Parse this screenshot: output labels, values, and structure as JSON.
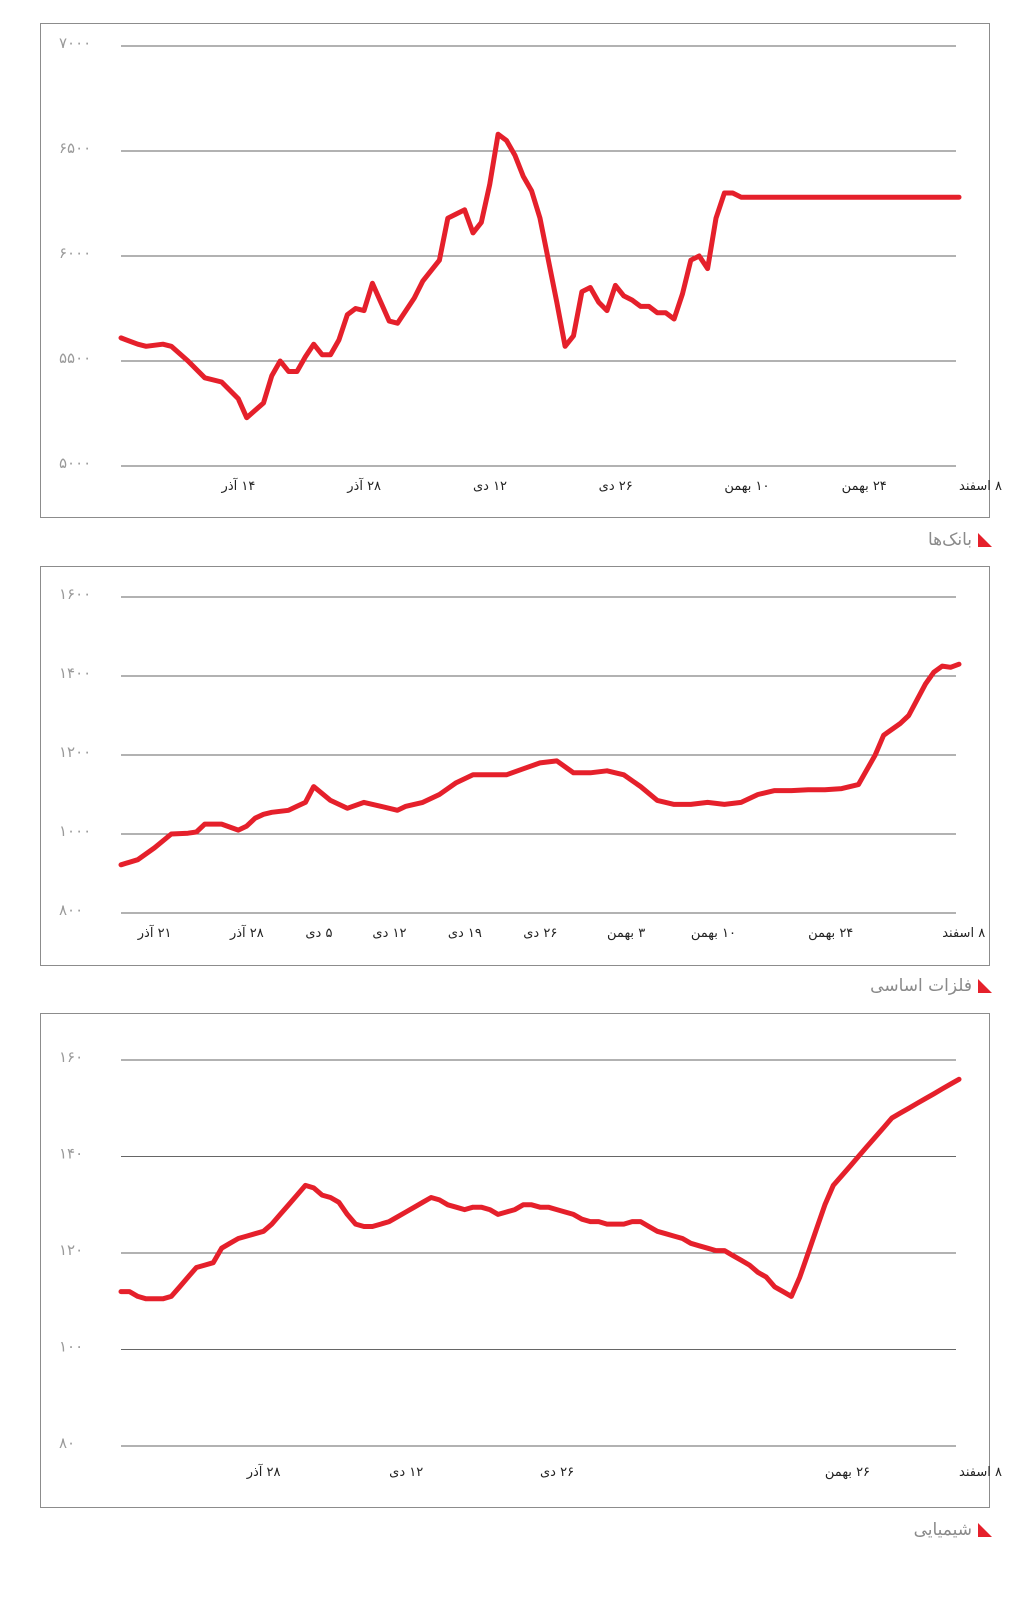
{
  "chart_data": [
    {
      "type": "line",
      "title": "بانک‌ها",
      "color": "#e5202b",
      "y_ticks": [
        "۵۰۰۰",
        "۵۵۰۰",
        "۶۰۰۰",
        "۶۵۰۰",
        "۷۰۰۰"
      ],
      "y_tick_values": [
        5000,
        5500,
        6000,
        6500,
        7000
      ],
      "ylim": [
        5000,
        7000
      ],
      "x_ticks": [
        "۱۴ آذر",
        "۲۸ آذر",
        "۱۲ دی",
        "۲۶ دی",
        "۱۰ بهمن",
        "۲۴ بهمن",
        "۸ اسفند"
      ],
      "x_tick_positions": [
        12,
        27,
        42,
        57,
        72,
        86,
        100
      ],
      "gridlines": [
        5000,
        5500,
        6000,
        6500,
        7000
      ],
      "xlim": [
        0,
        100
      ],
      "x": [
        0,
        2,
        3,
        5,
        6,
        8,
        10,
        12,
        14,
        15,
        17,
        18,
        19,
        20,
        21,
        22,
        23,
        24,
        25,
        26,
        27,
        28,
        29,
        30,
        32,
        33,
        34,
        35,
        36,
        38,
        39,
        40,
        41,
        42,
        43,
        44,
        45,
        46,
        47,
        48,
        49,
        50,
        51,
        52,
        53,
        54,
        55,
        56,
        57,
        58,
        59,
        60,
        61,
        62,
        63,
        64,
        65,
        66,
        67,
        68,
        69,
        70,
        71,
        72,
        73,
        74,
        75,
        76,
        77,
        78,
        79,
        80,
        81,
        82,
        83,
        84,
        85,
        86,
        87,
        88,
        89,
        90,
        91,
        92,
        93,
        94,
        95,
        96,
        97,
        98,
        99,
        100
      ],
      "values": [
        5610,
        5580,
        5570,
        5580,
        5570,
        5500,
        5420,
        5400,
        5320,
        5230,
        5300,
        5430,
        5500,
        5450,
        5450,
        5520,
        5580,
        5530,
        5530,
        5600,
        5720,
        5750,
        5740,
        5870,
        5690,
        5680,
        5740,
        5800,
        5880,
        5980,
        6180,
        6200,
        6220,
        6110,
        6160,
        6340,
        6580,
        6550,
        6480,
        6380,
        6310,
        6180,
        5980,
        5780,
        5570,
        5620,
        5830,
        5850,
        5780,
        5740,
        5860,
        5810,
        5790,
        5760,
        5760,
        5730,
        5730,
        5700,
        5820,
        5980,
        6000,
        5940,
        6180,
        6300,
        6300,
        6280,
        6280,
        6280,
        6280,
        6280,
        6280,
        6280,
        6280,
        6280,
        6280,
        6280,
        6280,
        6280,
        6280,
        6280,
        6280,
        6280,
        6280,
        6280,
        6280,
        6280,
        6280,
        6280,
        6280,
        6280,
        6280,
        6280
      ]
    },
    {
      "type": "line",
      "title": "فلزات اساسی",
      "color": "#e5202b",
      "y_ticks": [
        "۸۰۰",
        "۱۰۰۰",
        "۱۲۰۰",
        "۱۴۰۰",
        "۱۶۰۰"
      ],
      "y_tick_values": [
        800,
        1000,
        1200,
        1400,
        1600
      ],
      "ylim": [
        800,
        1600
      ],
      "x_ticks": [
        "۲۱ آذر",
        "۲۸ آذر",
        "۵ دی",
        "۱۲ دی",
        "۱۹ دی",
        "۲۶ دی",
        "۳ بهمن",
        "۱۰ بهمن",
        "۲۴ بهمن",
        "۸ اسفند"
      ],
      "x_tick_positions": [
        2,
        13,
        22,
        30,
        39,
        48,
        58,
        68,
        82,
        98
      ],
      "gridlines": [
        800,
        1000,
        1200,
        1400,
        1600
      ],
      "xlim": [
        0,
        100
      ],
      "x": [
        0,
        2,
        4,
        6,
        8,
        9,
        10,
        12,
        14,
        15,
        16,
        17,
        18,
        20,
        21,
        22,
        23,
        25,
        27,
        29,
        31,
        33,
        34,
        36,
        38,
        40,
        42,
        44,
        46,
        48,
        50,
        52,
        54,
        56,
        58,
        60,
        62,
        64,
        66,
        68,
        70,
        72,
        74,
        76,
        78,
        80,
        82,
        84,
        86,
        88,
        90,
        91,
        92,
        93,
        94,
        95,
        96,
        97,
        98,
        99,
        100
      ],
      "values": [
        922,
        935,
        965,
        1000,
        1002,
        1005,
        1025,
        1025,
        1010,
        1020,
        1040,
        1050,
        1055,
        1060,
        1070,
        1080,
        1120,
        1085,
        1065,
        1080,
        1070,
        1060,
        1070,
        1080,
        1100,
        1130,
        1150,
        1150,
        1150,
        1165,
        1180,
        1185,
        1155,
        1155,
        1160,
        1150,
        1120,
        1085,
        1075,
        1075,
        1080,
        1075,
        1080,
        1100,
        1110,
        1110,
        1112,
        1112,
        1115,
        1125,
        1200,
        1250,
        1265,
        1280,
        1300,
        1340,
        1380,
        1410,
        1425,
        1422,
        1430
      ]
    },
    {
      "type": "line",
      "title": "شیمیایی",
      "color": "#e5202b",
      "y_ticks": [
        "۸۰",
        "۱۰۰",
        "۱۲۰",
        "۱۴۰",
        "۱۶۰"
      ],
      "y_tick_values": [
        80,
        100,
        120,
        140,
        160
      ],
      "ylim": [
        80,
        160
      ],
      "x_ticks": [
        "۲۸ آذر",
        "۱۲ دی",
        "۲۶ دی",
        "۲۶ بهمن",
        "۸ اسفند"
      ],
      "x_tick_positions": [
        15,
        32,
        50,
        84,
        100
      ],
      "gridlines": [
        80,
        100,
        120,
        140,
        160
      ],
      "xlim": [
        0,
        100
      ],
      "x": [
        0,
        1,
        2,
        3,
        4,
        5,
        6,
        7,
        8,
        9,
        10,
        11,
        12,
        13,
        14,
        15,
        16,
        17,
        18,
        19,
        20,
        21,
        22,
        23,
        24,
        25,
        26,
        27,
        28,
        29,
        30,
        31,
        32,
        33,
        34,
        35,
        36,
        37,
        38,
        39,
        40,
        41,
        42,
        43,
        44,
        45,
        46,
        47,
        48,
        49,
        50,
        51,
        52,
        53,
        54,
        55,
        56,
        57,
        58,
        59,
        60,
        61,
        62,
        63,
        64,
        65,
        66,
        67,
        68,
        69,
        70,
        71,
        72,
        73,
        74,
        75,
        76,
        77,
        78,
        79,
        80,
        81,
        82,
        83,
        84,
        85,
        86,
        87,
        88,
        89,
        90,
        91,
        92,
        93,
        94,
        95,
        96,
        97,
        98,
        99,
        100
      ],
      "values": [
        112,
        112,
        111,
        110.5,
        110.5,
        110.5,
        111,
        113,
        115,
        117,
        117.5,
        118,
        121,
        122,
        123,
        123.5,
        124,
        124.5,
        126,
        128,
        130,
        132,
        134,
        133.5,
        132,
        131.5,
        130.5,
        128,
        126,
        125.5,
        125.5,
        126,
        126.5,
        127.5,
        128.5,
        129.5,
        130.5,
        131.5,
        131,
        130,
        129.5,
        129,
        129.5,
        129.5,
        129,
        128,
        128.5,
        129,
        130,
        130,
        129.5,
        129.5,
        129,
        128.5,
        128,
        127,
        126.5,
        126.5,
        126,
        126,
        126,
        126.5,
        126.5,
        125.5,
        124.5,
        124,
        123.5,
        123,
        122,
        121.5,
        121,
        120.5,
        120.5,
        119.5,
        118.5,
        117.5,
        116,
        115,
        113,
        112,
        111,
        115,
        120,
        125,
        130,
        134,
        136,
        138,
        140,
        142,
        144,
        146,
        148,
        149,
        150,
        151,
        152,
        153,
        154,
        155,
        156
      ]
    }
  ],
  "captions": [
    "بانک‌ها",
    "فلزات اساسی",
    "شیمیایی"
  ]
}
